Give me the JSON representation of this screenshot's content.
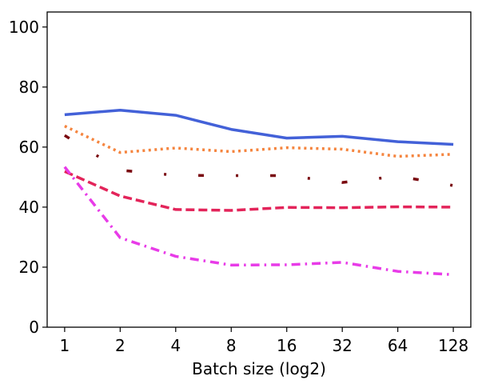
{
  "chart_data": {
    "type": "line",
    "title": "",
    "xlabel": "Batch size (log2)",
    "ylabel": "",
    "x": [
      1,
      2,
      4,
      8,
      16,
      32,
      64,
      128
    ],
    "x_tick_labels": [
      "1",
      "2",
      "4",
      "8",
      "16",
      "32",
      "64",
      "128"
    ],
    "x_scale": "log2",
    "ylim": [
      0,
      105
    ],
    "y_ticks": [
      0,
      20,
      40,
      60,
      80,
      100
    ],
    "y_tick_labels": [
      "0",
      "20",
      "40",
      "60",
      "80",
      "100"
    ],
    "grid": false,
    "legend": "none",
    "series": [
      {
        "color": "#4361d8",
        "line_style": "solid",
        "values": [
          70.8,
          72.3,
          70.6,
          65.9,
          63.0,
          63.6,
          61.8,
          60.9
        ]
      },
      {
        "color": "#f5853f",
        "line_style": "dotted",
        "values": [
          67.0,
          58.2,
          59.7,
          58.5,
          59.8,
          59.3,
          56.9,
          57.6
        ]
      },
      {
        "color": "#7a0a10",
        "line_style": "dashdot-sparse",
        "values": [
          63.9,
          52.3,
          50.6,
          50.5,
          50.5,
          48.2,
          50.3,
          47.2
        ]
      },
      {
        "color": "#e3245a",
        "line_style": "dashed",
        "values": [
          51.9,
          43.7,
          39.2,
          38.9,
          39.9,
          39.8,
          40.1,
          40.0
        ]
      },
      {
        "color": "#e83be8",
        "line_style": "dashdot",
        "values": [
          53.4,
          29.8,
          23.6,
          20.7,
          20.8,
          21.6,
          18.6,
          17.5
        ]
      }
    ]
  }
}
